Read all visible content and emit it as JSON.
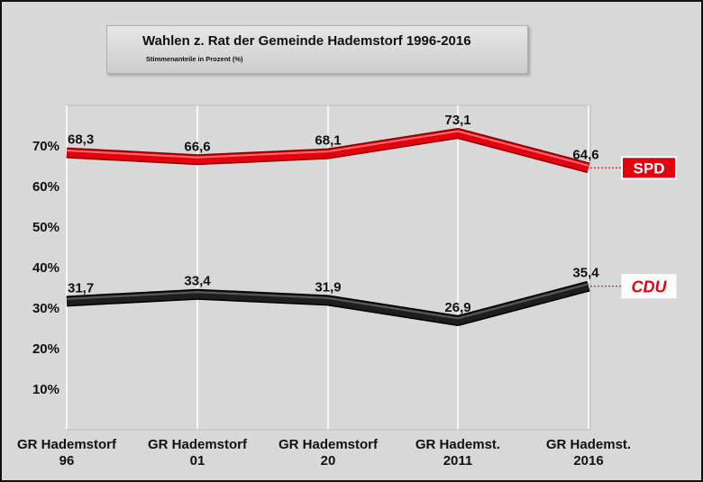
{
  "title": "Wahlen z. Rat der Gemeinde Hademstorf 1996-2016",
  "subtitle": "Stimmenanteile in Prozent (%)",
  "colors": {
    "spd": "#e3000f",
    "cdu": "#1e1e1e",
    "background": "#d8d8d8"
  },
  "chart_data": {
    "type": "line",
    "title": "Wahlen z. Rat der Gemeinde Hademstorf 1996-2016",
    "subtitle": "Stimmenanteile in Prozent (%)",
    "categories": [
      [
        "GR Hademstorf",
        "96"
      ],
      [
        "GR Hademstorf",
        "01"
      ],
      [
        "GR Hademstorf",
        "20"
      ],
      [
        "GR Hademst.",
        "2011"
      ],
      [
        "GR Hademst.",
        "2016"
      ]
    ],
    "y_ticks": [
      "10%",
      "20%",
      "30%",
      "40%",
      "50%",
      "60%",
      "70%"
    ],
    "ylim": [
      0,
      80
    ],
    "grid": "vertical lines at categories",
    "legend": "labels at right end of lines",
    "series": [
      {
        "name": "SPD",
        "color": "#e3000f",
        "values": [
          68.3,
          66.6,
          68.1,
          73.1,
          64.6
        ],
        "labels": [
          "68,3",
          "66,6",
          "68,1",
          "73,1",
          "64,6"
        ]
      },
      {
        "name": "CDU",
        "color": "#1e1e1e",
        "values": [
          31.7,
          33.4,
          31.9,
          26.9,
          35.4
        ],
        "labels": [
          "31,7",
          "33,4",
          "31,9",
          "26,9",
          "35,4"
        ]
      }
    ]
  }
}
